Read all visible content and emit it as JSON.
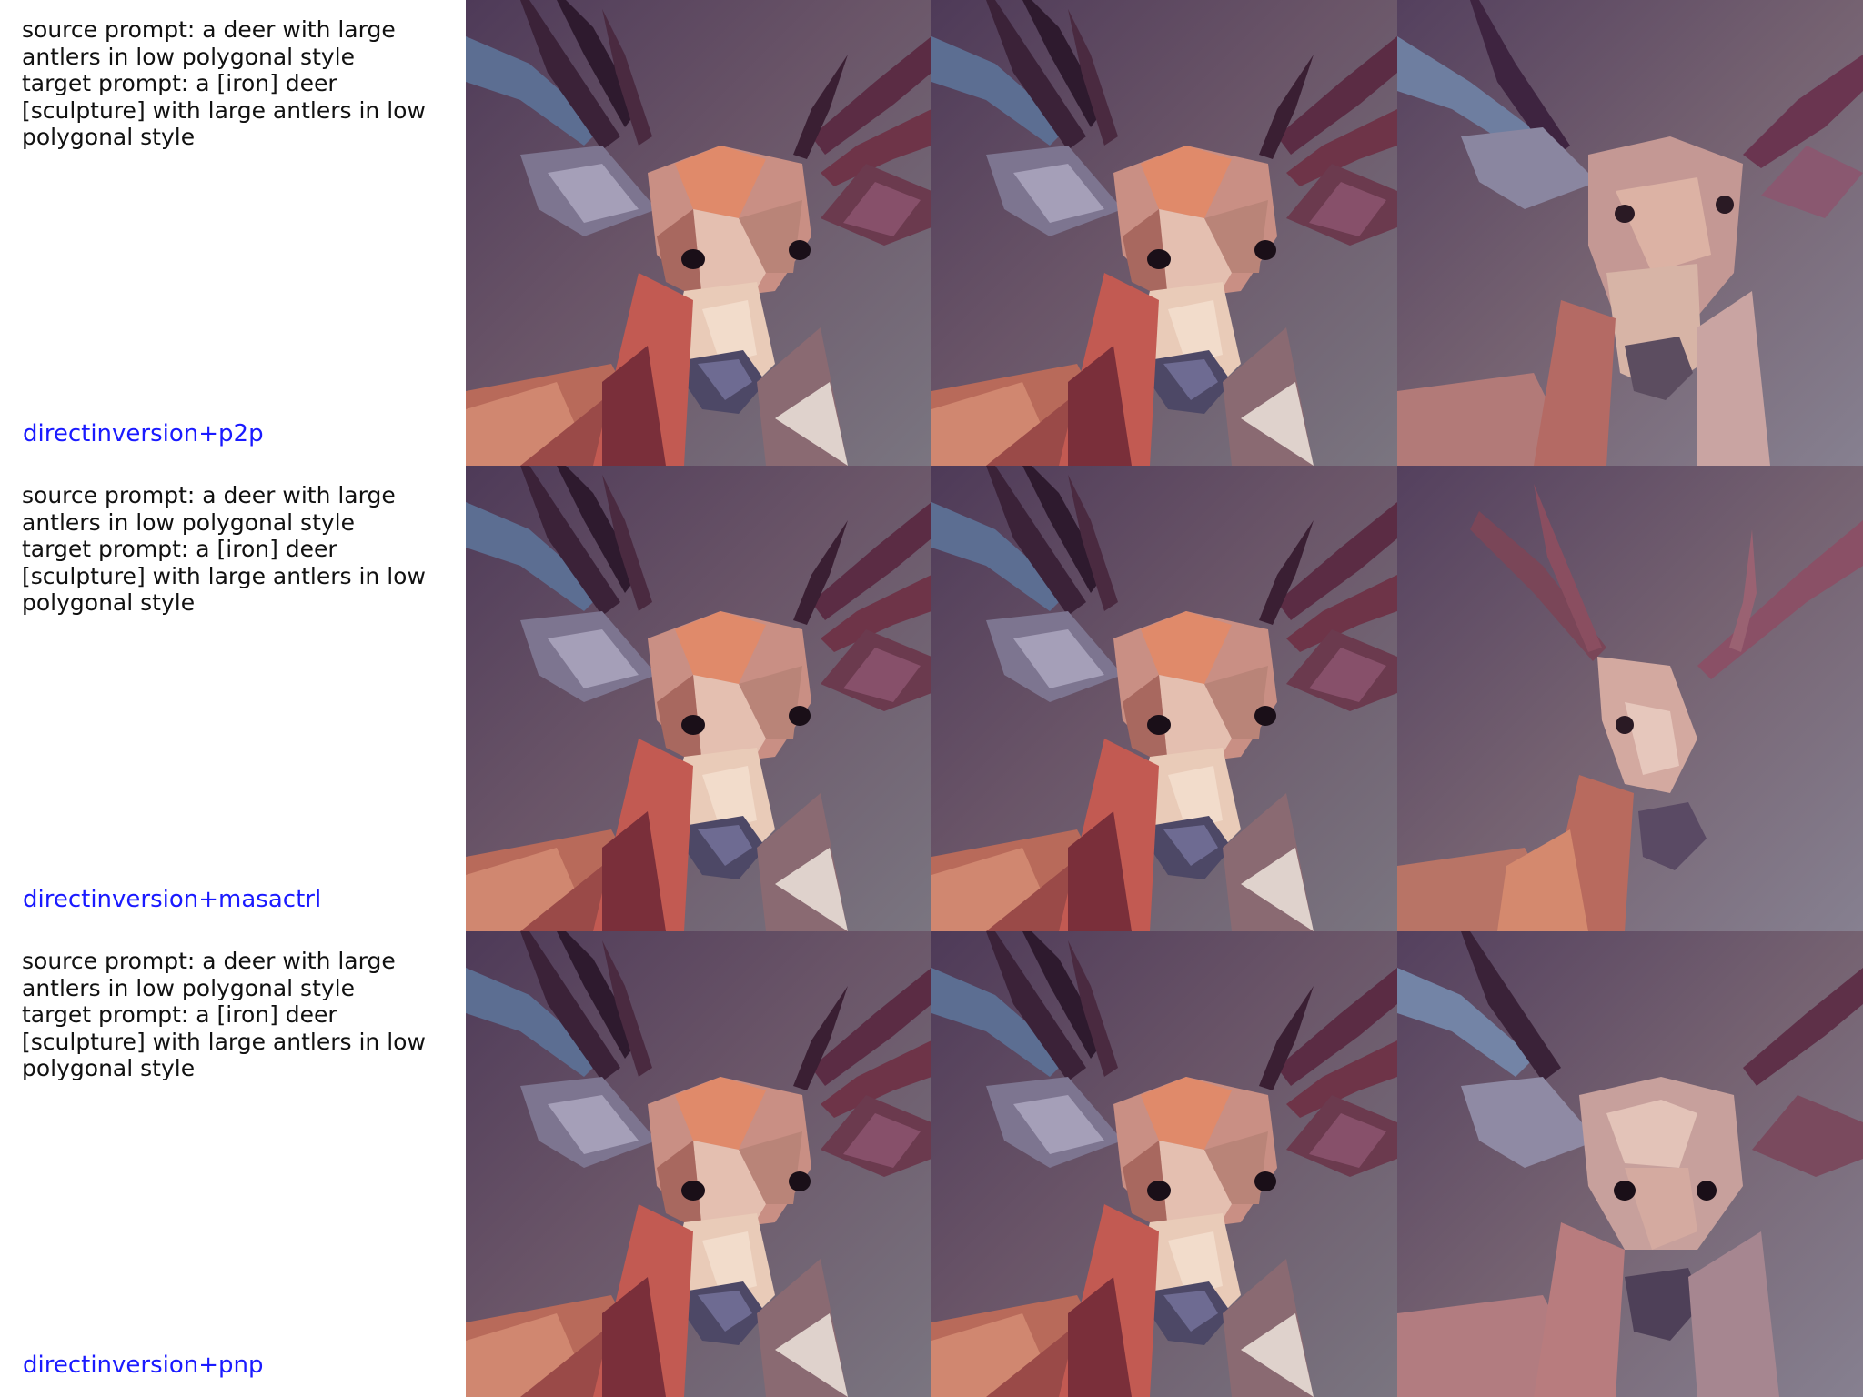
{
  "rows": [
    {
      "source_prompt": "source prompt: a deer with large antlers in low polygonal style",
      "target_prompt": "target prompt: a [iron] deer [sculpture] with large antlers in low polygonal style",
      "prompt_lines": [
        "source prompt: a deer with large",
        "antlers in low polygonal style",
        "target prompt: a [iron] deer",
        "[sculpture] with large antlers in low",
        "polygonal style"
      ],
      "method": "directinversion+p2p"
    },
    {
      "source_prompt": "source prompt: a deer with large antlers in low polygonal style",
      "target_prompt": "target prompt: a [iron] deer [sculpture] with large antlers in low polygonal style",
      "prompt_lines": [
        "source prompt: a deer with large",
        "antlers in low polygonal style",
        "target prompt: a [iron] deer",
        "[sculpture] with large antlers in low",
        "polygonal style"
      ],
      "method": "directinversion+masactrl"
    },
    {
      "source_prompt": "source prompt: a deer with large antlers in low polygonal style",
      "target_prompt": "target prompt: a [iron] deer [sculpture] with large antlers in low polygonal style",
      "prompt_lines": [
        "source prompt: a deer with large",
        "antlers in low polygonal style",
        "target prompt: a [iron] deer",
        "[sculpture] with large antlers in low",
        "polygonal style"
      ],
      "method": "directinversion+pnp"
    }
  ],
  "colors": {
    "method_label": "#1a1aff",
    "prompt_text": "#111111",
    "background": "#ffffff"
  }
}
